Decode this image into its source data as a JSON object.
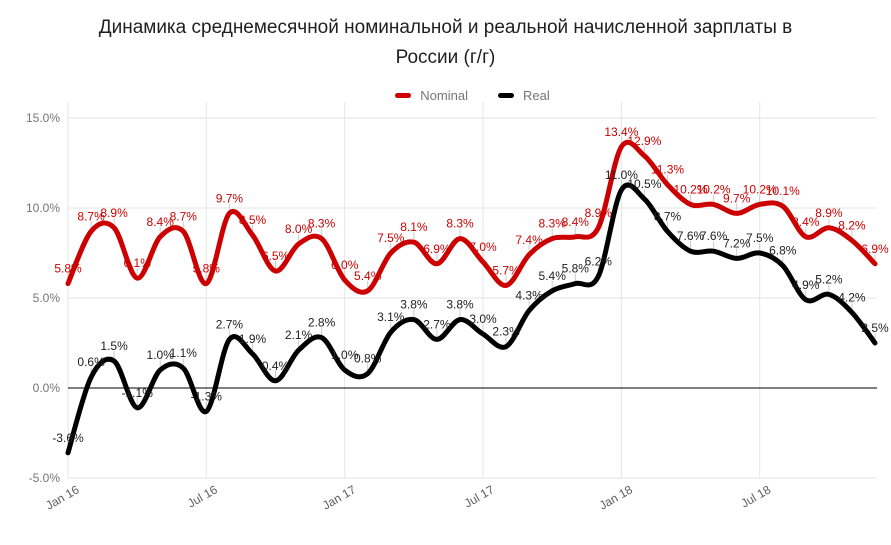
{
  "header": {
    "title_line1": "Динамика среднемесячной номинальной и реальной начисленной зарплаты в",
    "title_line2": "России (г/г)"
  },
  "chart_data": {
    "type": "line",
    "title": "Динамика среднемесячной номинальной и реальной начисленной зарплаты в России (г/г)",
    "curve": "smooth",
    "grid": true,
    "legend_position": "top",
    "ylim": [
      -5,
      15
    ],
    "baseline_value": 0,
    "y_ticks": [
      {
        "value": 15,
        "label": "15.0%"
      },
      {
        "value": 10,
        "label": "10.0%"
      },
      {
        "value": 5,
        "label": "5.0%"
      },
      {
        "value": 0,
        "label": "0.0%"
      },
      {
        "value": -5,
        "label": "-5.0%"
      }
    ],
    "x_ticks": [
      {
        "index": 0,
        "label": "Jan 16"
      },
      {
        "index": 6,
        "label": "Jul 16"
      },
      {
        "index": 12,
        "label": "Jan 17"
      },
      {
        "index": 18,
        "label": "Jul 17"
      },
      {
        "index": 24,
        "label": "Jan 18"
      },
      {
        "index": 30,
        "label": "Jul 18"
      }
    ],
    "series": [
      {
        "name": "Nominal",
        "color": "#cc0000",
        "label_color": "#cc0000",
        "values": [
          5.8,
          8.7,
          8.9,
          6.1,
          8.4,
          8.7,
          5.8,
          9.7,
          8.5,
          6.5,
          8.0,
          8.3,
          6.0,
          5.4,
          7.5,
          8.1,
          6.9,
          8.3,
          7.0,
          5.7,
          7.4,
          8.3,
          8.4,
          8.9,
          13.4,
          12.9,
          11.3,
          10.2,
          10.2,
          9.7,
          10.2,
          10.1,
          8.4,
          8.9,
          8.2,
          6.9
        ]
      },
      {
        "name": "Real",
        "color": "#000000",
        "label_color": "#212121",
        "values": [
          -3.6,
          0.6,
          1.5,
          -1.1,
          1.0,
          1.1,
          -1.3,
          2.7,
          1.9,
          0.4,
          2.1,
          2.8,
          1.0,
          0.8,
          3.1,
          3.8,
          2.7,
          3.8,
          3.0,
          2.3,
          4.3,
          5.4,
          5.8,
          6.2,
          11.0,
          10.5,
          8.7,
          7.6,
          7.6,
          7.2,
          7.5,
          6.8,
          4.9,
          5.2,
          4.2,
          2.5
        ]
      }
    ],
    "label_format": "#.#%"
  }
}
